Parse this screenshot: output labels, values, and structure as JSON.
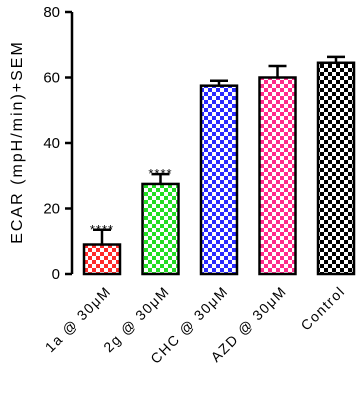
{
  "chart_data": {
    "type": "bar",
    "ylabel": "ECAR (mpH/min)+SEM",
    "xlabel": "",
    "ylim": [
      0,
      80
    ],
    "yticks": [
      0,
      20,
      40,
      60,
      80
    ],
    "categories": [
      "1a @ 30μM",
      "2g @ 30μM",
      "CHC @ 30μM",
      "AZD @ 30μM",
      "Control"
    ],
    "values": [
      9,
      27.5,
      57.5,
      60,
      64.5
    ],
    "errors": [
      4.5,
      3,
      1.5,
      3.5,
      1.8
    ],
    "significance": [
      "****",
      "****",
      "",
      "",
      ""
    ],
    "colors": [
      "#ff2a2a",
      "#22dd22",
      "#2a2aff",
      "#ff2a8a",
      "#000000"
    ],
    "pattern": "checkerboard"
  }
}
